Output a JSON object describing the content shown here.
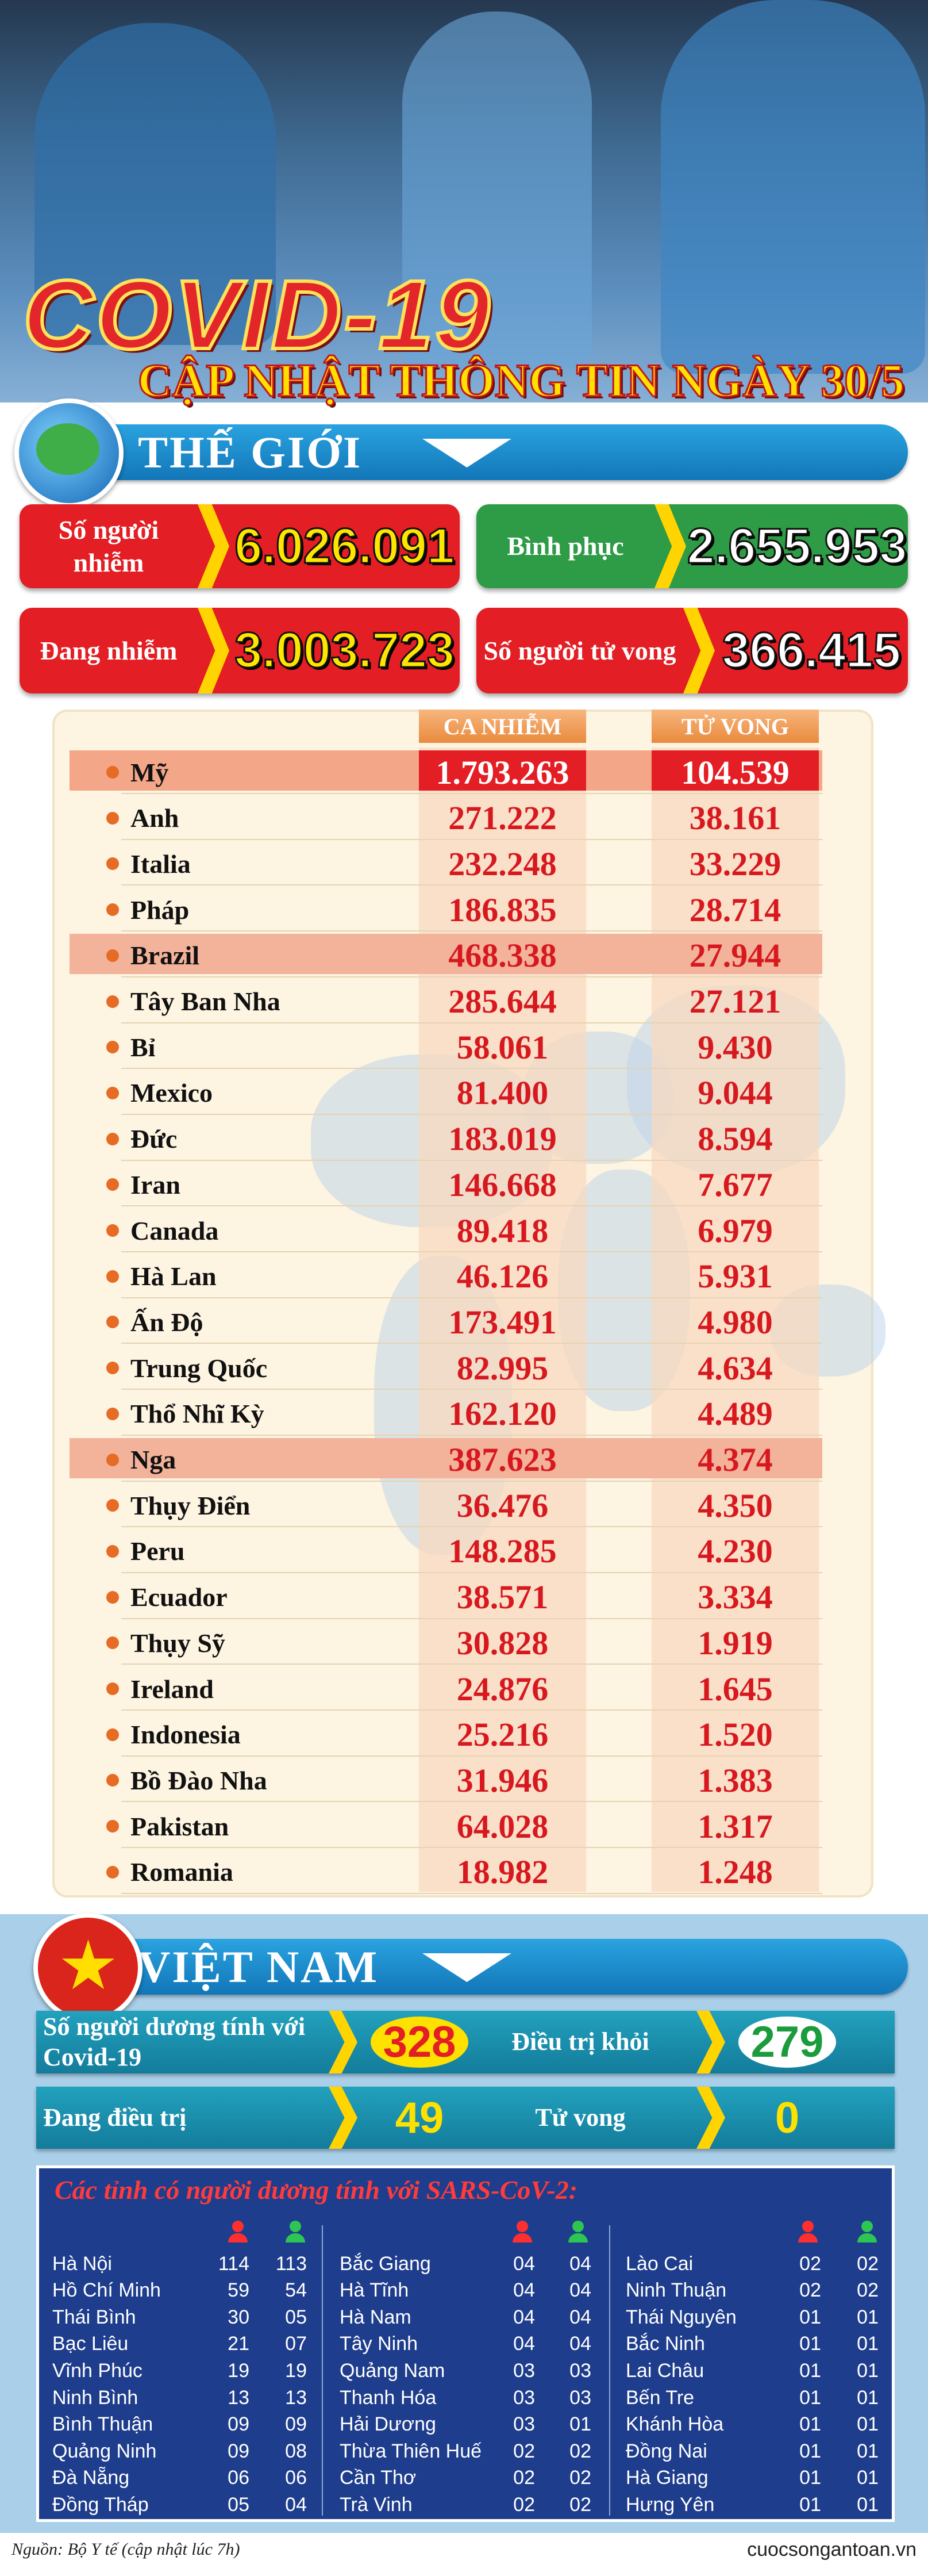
{
  "header": {
    "title": "COVID-19",
    "subtitle": "CẬP NHẬT THÔNG TIN NGÀY 30/5"
  },
  "world": {
    "title": "THẾ GIỚI",
    "stats": [
      {
        "label": "Số người nhiễm",
        "value": "6.026.091"
      },
      {
        "label": "Bình phục",
        "value": "2.655.953"
      },
      {
        "label": "Đang nhiễm",
        "value": "3.003.723"
      },
      {
        "label": "Số người tử vong",
        "value": "366.415"
      }
    ],
    "table": {
      "columns": [
        "CA NHIỄM",
        "TỬ VONG"
      ],
      "rows": [
        [
          "Mỹ",
          "1.793.263",
          "104.539"
        ],
        [
          "Anh",
          "271.222",
          "38.161"
        ],
        [
          "Italia",
          "232.248",
          "33.229"
        ],
        [
          "Pháp",
          "186.835",
          "28.714"
        ],
        [
          "Brazil",
          "468.338",
          "27.944"
        ],
        [
          "Tây Ban Nha",
          "285.644",
          "27.121"
        ],
        [
          "Bỉ",
          "58.061",
          "9.430"
        ],
        [
          "Mexico",
          "81.400",
          "9.044"
        ],
        [
          "Đức",
          "183.019",
          "8.594"
        ],
        [
          "Iran",
          "146.668",
          "7.677"
        ],
        [
          "Canada",
          "89.418",
          "6.979"
        ],
        [
          "Hà Lan",
          "46.126",
          "5.931"
        ],
        [
          "Ấn Độ",
          "173.491",
          "4.980"
        ],
        [
          "Trung Quốc",
          "82.995",
          "4.634"
        ],
        [
          "Thổ Nhĩ Kỳ",
          "162.120",
          "4.489"
        ],
        [
          "Nga",
          "387.623",
          "4.374"
        ],
        [
          "Thụy Điển",
          "36.476",
          "4.350"
        ],
        [
          "Peru",
          "148.285",
          "4.230"
        ],
        [
          "Ecuador",
          "38.571",
          "3.334"
        ],
        [
          "Thụy Sỹ",
          "30.828",
          "1.919"
        ],
        [
          "Ireland",
          "24.876",
          "1.645"
        ],
        [
          "Indonesia",
          "25.216",
          "1.520"
        ],
        [
          "Bồ Đào Nha",
          "31.946",
          "1.383"
        ],
        [
          "Pakistan",
          "64.028",
          "1.317"
        ],
        [
          "Romania",
          "18.982",
          "1.248"
        ]
      ]
    }
  },
  "vietnam": {
    "title": "VIỆT NAM",
    "stats": [
      {
        "label": "Số người dương tính với Covid-19",
        "value": "328"
      },
      {
        "label": "Điều trị khỏi",
        "value": "279"
      },
      {
        "label": "Đang điều trị",
        "value": "49"
      },
      {
        "label": "Tử vong",
        "value": "0"
      }
    ],
    "provinces": {
      "title": "Các tỉnh có người dương tính với SARS-CoV-2:",
      "columns": [
        [
          [
            "Hà Nội",
            "114",
            "113"
          ],
          [
            "Hồ Chí Minh",
            "59",
            "54"
          ],
          [
            "Thái Bình",
            "30",
            "05"
          ],
          [
            "Bạc Liêu",
            "21",
            "07"
          ],
          [
            "Vĩnh Phúc",
            "19",
            "19"
          ],
          [
            "Ninh Bình",
            "13",
            "13"
          ],
          [
            "Bình Thuận",
            "09",
            "09"
          ],
          [
            "Quảng Ninh",
            "09",
            "08"
          ],
          [
            "Đà Nẵng",
            "06",
            "06"
          ],
          [
            "Đồng Tháp",
            "05",
            "04"
          ]
        ],
        [
          [
            "Bắc Giang",
            "04",
            "04"
          ],
          [
            "Hà Tĩnh",
            "04",
            "04"
          ],
          [
            "Hà Nam",
            "04",
            "04"
          ],
          [
            "Tây Ninh",
            "04",
            "04"
          ],
          [
            "Quảng Nam",
            "03",
            "03"
          ],
          [
            "Thanh Hóa",
            "03",
            "03"
          ],
          [
            "Hải Dương",
            "03",
            "01"
          ],
          [
            "Thừa Thiên Huế",
            "02",
            "02"
          ],
          [
            "Cần Thơ",
            "02",
            "02"
          ],
          [
            "Trà Vinh",
            "02",
            "02"
          ]
        ],
        [
          [
            "Lào Cai",
            "02",
            "02"
          ],
          [
            "Ninh Thuận",
            "02",
            "02"
          ],
          [
            "Thái Nguyên",
            "01",
            "01"
          ],
          [
            "Bắc Ninh",
            "01",
            "01"
          ],
          [
            "Lai Châu",
            "01",
            "01"
          ],
          [
            "Bến Tre",
            "01",
            "01"
          ],
          [
            "Khánh Hòa",
            "01",
            "01"
          ],
          [
            "Đồng Nai",
            "01",
            "01"
          ],
          [
            "Hà Giang",
            "01",
            "01"
          ],
          [
            "Hưng Yên",
            "01",
            "01"
          ]
        ]
      ]
    }
  },
  "footer": {
    "source": "Nguồn: Bộ Y tế (cập nhật lúc 7h)",
    "website": "cuocsongantoan.vn"
  }
}
